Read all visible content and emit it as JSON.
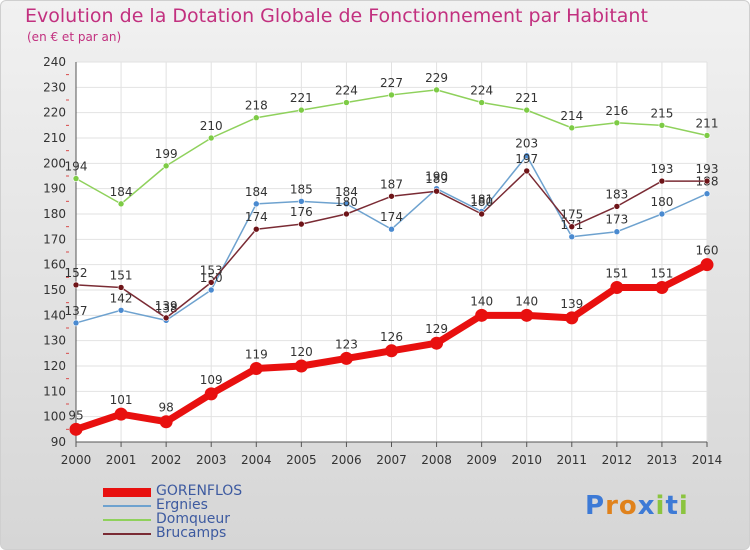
{
  "header": {
    "title": "Evolution de la Dotation Globale de Fonctionnement par Habitant",
    "subtitle": "(en € et par an)"
  },
  "logo": {
    "text": "Proxiti"
  },
  "chart_data": {
    "type": "line",
    "title": "Evolution de la Dotation Globale de Fonctionnement par Habitant",
    "subtitle": "(en € et par an)",
    "xlabel": "",
    "ylabel": "",
    "x": [
      "2000",
      "2001",
      "2002",
      "2003",
      "2004",
      "2005",
      "2006",
      "2007",
      "2008",
      "2009",
      "2010",
      "2011",
      "2012",
      "2013",
      "2014"
    ],
    "ylim": [
      90,
      240
    ],
    "yticks": [
      90,
      100,
      110,
      120,
      130,
      140,
      150,
      160,
      170,
      180,
      190,
      200,
      210,
      220,
      230,
      240
    ],
    "grid": true,
    "legend_position": "bottom-left",
    "series": [
      {
        "name": "GORENFLOS",
        "color": "#e8100f",
        "marker_color": "#e8100f",
        "emphasis": true,
        "values": [
          95,
          101,
          98,
          109,
          119,
          120,
          123,
          126,
          129,
          140,
          140,
          139,
          151,
          151,
          160
        ]
      },
      {
        "name": "Ergnies",
        "color": "#6ea2cf",
        "marker_color": "#4a8ad0",
        "values": [
          137,
          142,
          138,
          150,
          184,
          185,
          184,
          174,
          190,
          181,
          203,
          171,
          173,
          180,
          188
        ]
      },
      {
        "name": "Domqueur",
        "color": "#8fd15c",
        "marker_color": "#7dcb45",
        "values": [
          194,
          184,
          199,
          210,
          218,
          221,
          224,
          227,
          229,
          224,
          221,
          214,
          216,
          215,
          211
        ]
      },
      {
        "name": "Brucamps",
        "color": "#7a2b34",
        "marker_color": "#6e1418",
        "values": [
          152,
          151,
          139,
          153,
          174,
          176,
          180,
          187,
          189,
          180,
          197,
          175,
          183,
          193,
          193
        ]
      }
    ]
  }
}
